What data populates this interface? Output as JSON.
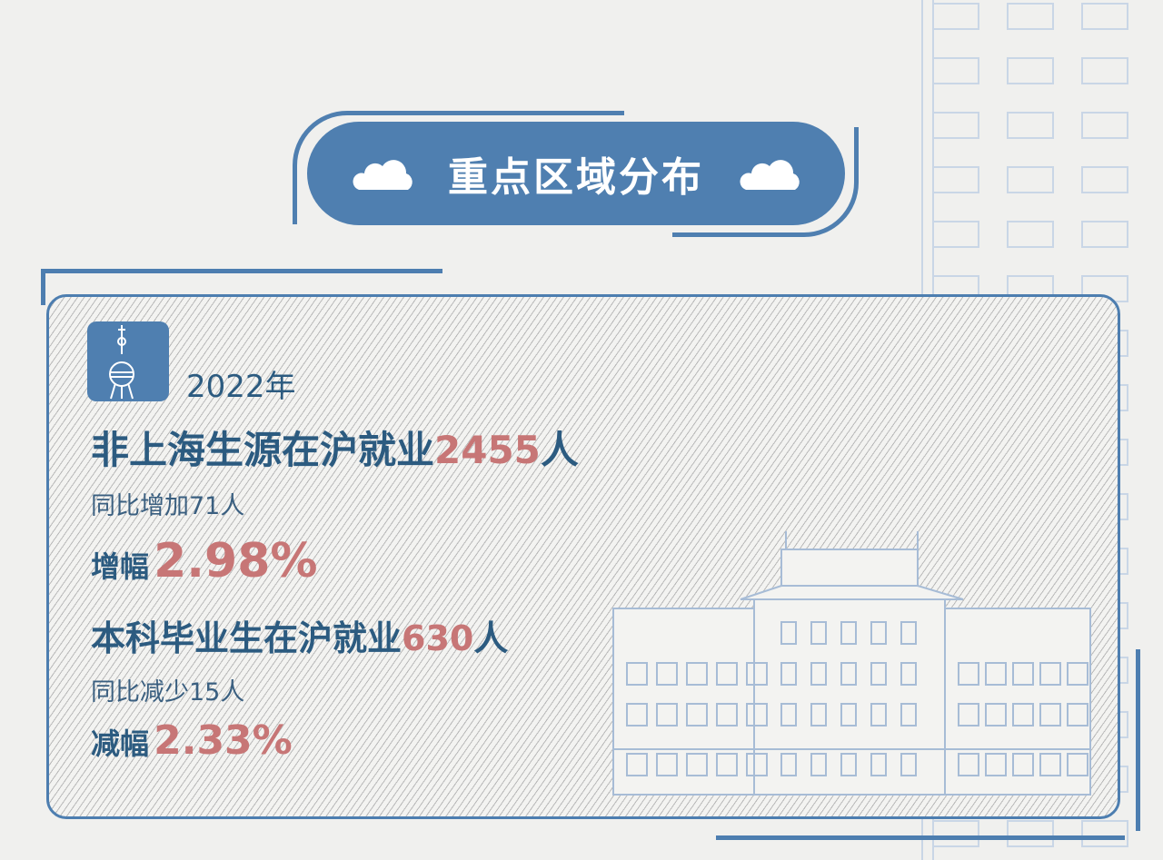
{
  "title": "重点区域分布",
  "icons": {
    "title_left": "cloud-icon",
    "title_right": "cloud-icon",
    "card": "oriental-pearl-tower-icon"
  },
  "colors": {
    "accent": "#4f7fb0",
    "text": "#2c5b80",
    "highlight": "#c77676"
  },
  "card": {
    "year": "2022年",
    "stat1": {
      "prefix": "非上海生源在沪就业",
      "value": "2455",
      "suffix": "人"
    },
    "stat1_change": "同比增加71人",
    "stat1_rate_label": "增幅",
    "stat1_rate": "2.98%",
    "stat2": {
      "prefix": "本科毕业生在沪就业",
      "value": "630",
      "suffix": "人"
    },
    "stat2_change": "同比减少15人",
    "stat2_rate_label": "减幅",
    "stat2_rate": "2.33%"
  }
}
